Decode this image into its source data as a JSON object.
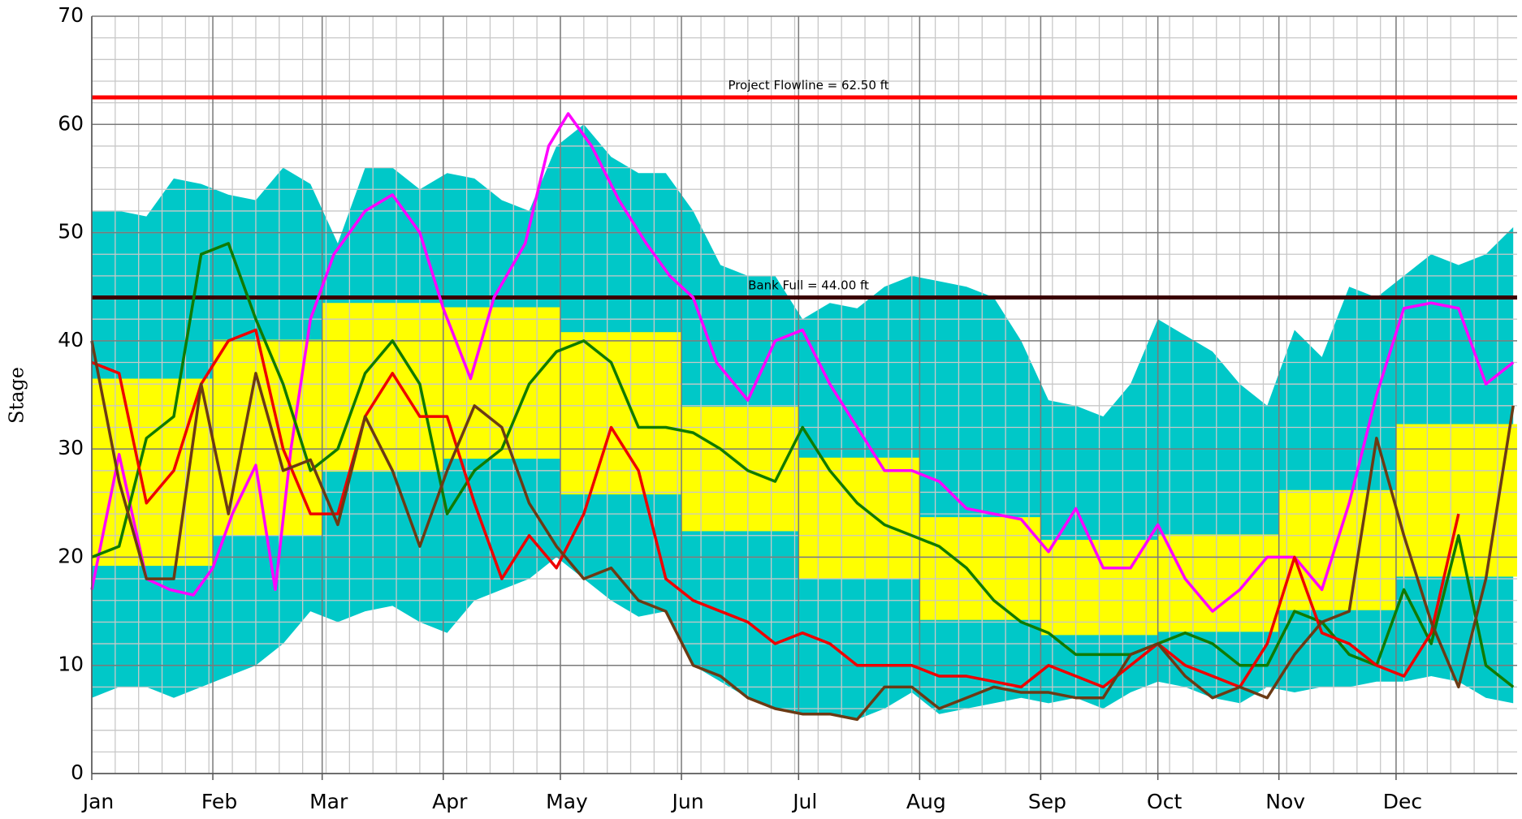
{
  "chart_data": {
    "type": "line",
    "y_label": "Stage",
    "xlim": [
      0,
      365
    ],
    "ylim": [
      0,
      70
    ],
    "yticks": [
      0,
      10,
      20,
      30,
      40,
      50,
      60,
      70
    ],
    "xticks": [
      {
        "value": 0,
        "label": "Jan"
      },
      {
        "value": 31,
        "label": "Feb"
      },
      {
        "value": 59,
        "label": "Mar"
      },
      {
        "value": 90,
        "label": "Apr"
      },
      {
        "value": 120,
        "label": "May"
      },
      {
        "value": 151,
        "label": "Jun"
      },
      {
        "value": 181,
        "label": "Jul"
      },
      {
        "value": 212,
        "label": "Aug"
      },
      {
        "value": 243,
        "label": "Sep"
      },
      {
        "value": 273,
        "label": "Oct"
      },
      {
        "value": 304,
        "label": "Nov"
      },
      {
        "value": 334,
        "label": "Dec"
      }
    ],
    "grid": true,
    "minor_grid": {
      "x_step": 6,
      "y_step": 2
    },
    "x": [
      0,
      7,
      14,
      21,
      28,
      35,
      42,
      49,
      56,
      63,
      70,
      77,
      84,
      91,
      98,
      105,
      112,
      119,
      126,
      133,
      140,
      147,
      154,
      161,
      168,
      175,
      182,
      189,
      196,
      203,
      210,
      217,
      224,
      231,
      238,
      245,
      252,
      259,
      266,
      273,
      280,
      287,
      294,
      301,
      308,
      315,
      322,
      329,
      336,
      343,
      350,
      357,
      364
    ],
    "band": {
      "color": "#00c8c8",
      "upper": [
        52,
        52,
        51.5,
        55,
        54.5,
        53.5,
        53,
        56,
        54.5,
        49,
        56,
        56,
        54,
        55.5,
        55,
        53,
        52,
        58,
        60,
        57,
        55.5,
        55.5,
        52,
        47,
        46,
        46,
        42,
        43.5,
        43,
        45,
        46,
        45.5,
        45,
        44,
        40,
        34.5,
        34,
        33,
        36,
        42,
        40.5,
        39,
        36,
        34,
        41,
        38.5,
        45,
        44,
        46,
        48,
        47,
        48,
        50.5
      ],
      "lower": [
        7,
        8,
        8,
        7,
        8,
        9,
        10,
        12,
        15,
        14,
        15,
        15.5,
        14,
        13,
        16,
        17,
        18,
        20,
        18,
        16,
        14.5,
        15,
        10,
        8.5,
        7,
        6,
        5.5,
        5.5,
        5,
        6,
        7.5,
        5.5,
        6,
        6.5,
        7,
        6.5,
        7,
        6,
        7.5,
        8.5,
        8,
        7,
        6.5,
        8,
        7.5,
        8,
        8,
        8.5,
        8.5,
        9,
        8.5,
        7,
        6.5
      ]
    },
    "monthly_range": {
      "color": "#ffff00",
      "low": [
        19.2,
        22.0,
        27.9,
        29.1,
        25.8,
        22.4,
        18.0,
        14.2,
        12.8,
        13.1,
        15.1,
        18.2
      ],
      "high": [
        36.5,
        40.1,
        43.5,
        43.1,
        40.8,
        33.9,
        29.2,
        23.7,
        21.6,
        22.1,
        26.2,
        32.3
      ]
    },
    "reference_lines": [
      {
        "label": "Project Flowline = 62.50 ft",
        "value": 62.5,
        "color": "#ff0000"
      },
      {
        "label": "Bank Full = 44.00 ft",
        "value": 44,
        "color": "#3a0000"
      }
    ],
    "series": [
      {
        "color": "#ff00ff",
        "x": [
          0,
          7,
          14,
          20,
          26,
          31,
          36,
          42,
          47,
          51,
          56,
          62,
          70,
          77,
          84,
          90,
          97,
          103,
          111,
          117,
          122,
          128,
          135,
          142,
          148,
          154,
          160,
          168,
          175,
          182,
          189,
          196,
          203,
          210,
          217,
          224,
          231,
          238,
          245,
          252,
          259,
          266,
          273,
          280,
          287,
          294,
          301,
          308,
          315,
          322,
          329,
          336,
          343,
          350,
          357,
          364
        ],
        "values": [
          17,
          29.5,
          18,
          17,
          16.5,
          19,
          24,
          28.5,
          17,
          30,
          42,
          48,
          52,
          53.5,
          50,
          43,
          36.5,
          44,
          49,
          58,
          61,
          58,
          53,
          49,
          46,
          44,
          38,
          34.5,
          40,
          41,
          36,
          32,
          28,
          28,
          27,
          24.5,
          24,
          23.5,
          20.5,
          24.5,
          19,
          19,
          23,
          18,
          15,
          17,
          20,
          20,
          17,
          25,
          35,
          43,
          43.5,
          43,
          36,
          38
        ]
      },
      {
        "color": "#107a00",
        "values": [
          20,
          21,
          31,
          33,
          48,
          49,
          42,
          36,
          28,
          30,
          37,
          40,
          36,
          24,
          28,
          30,
          36,
          39,
          40,
          38,
          32,
          32,
          31.5,
          30,
          28,
          27,
          32,
          28,
          25,
          23,
          22,
          21,
          19,
          16,
          14,
          13,
          11,
          11,
          11,
          12,
          13,
          12,
          10,
          10,
          15,
          14,
          11,
          10,
          17,
          12,
          22,
          10,
          8
        ]
      },
      {
        "color": "#ee0000",
        "values": [
          38,
          37,
          25,
          28,
          36,
          40,
          41,
          30,
          24,
          24,
          33,
          37,
          33,
          33,
          25,
          18,
          22,
          19,
          24,
          32,
          28,
          18,
          16,
          15,
          14,
          12,
          13,
          12,
          10,
          10,
          10,
          9,
          9,
          8.5,
          8,
          10,
          9,
          8,
          10,
          12,
          10,
          9,
          8,
          12,
          20,
          13,
          12,
          10,
          9,
          13,
          24,
          null,
          null
        ]
      },
      {
        "color": "#6b3a14",
        "values": [
          40,
          27,
          18,
          18,
          36,
          24,
          37,
          28,
          29,
          23,
          33,
          28,
          21,
          28,
          34,
          32,
          25,
          21,
          18,
          19,
          16,
          15,
          10,
          9,
          7,
          6,
          5.5,
          5.5,
          5,
          8,
          8,
          6,
          7,
          8,
          7.5,
          7.5,
          7,
          7,
          11,
          12,
          9,
          7,
          8,
          7,
          11,
          14,
          15,
          31,
          22,
          14,
          8,
          18,
          34
        ]
      }
    ]
  }
}
